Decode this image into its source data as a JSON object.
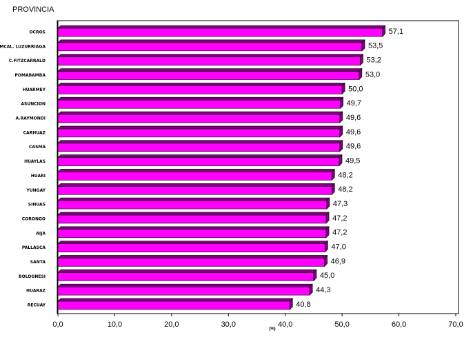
{
  "chart_data": {
    "type": "bar3d-horizontal",
    "title": "PROVINCIA",
    "x_label": "(%)",
    "categories": [
      "OCROS",
      "MCAL. LUZURRIAGA",
      "C.FITZCARRALD",
      "POMABAMBA",
      "HUARMEY",
      "ASUNCION",
      "A.RAYMONDI",
      "CARHUAZ",
      "CASMA",
      "HUAYLAS",
      "HUARI",
      "YUNGAY",
      "SIHUAS",
      "CORONGO",
      "AIJA",
      "PALLASCA",
      "SANTA",
      "BOLOGNESI",
      "HUARAZ",
      "RECUAY"
    ],
    "values": [
      57.1,
      53.5,
      53.2,
      53.0,
      50.0,
      49.7,
      49.6,
      49.6,
      49.6,
      49.5,
      48.2,
      48.2,
      47.3,
      47.2,
      47.2,
      47.0,
      46.9,
      45.0,
      44.3,
      40.8
    ],
    "value_labels": [
      "57,1",
      "53,5",
      "53,2",
      "53,0",
      "50,0",
      "49,7",
      "49,6",
      "49,6",
      "49,6",
      "49,5",
      "48,2",
      "48,2",
      "47,3",
      "47,2",
      "47,2",
      "47,0",
      "46,9",
      "45,0",
      "44,3",
      "40,8"
    ],
    "color": "#ff00ff",
    "side_color": "#800080",
    "xlim": [
      0,
      70
    ],
    "xticks": [
      {
        "value": 0,
        "label": "0,0"
      },
      {
        "value": 10,
        "label": "10,0"
      },
      {
        "value": 20,
        "label": "20,0"
      },
      {
        "value": 30,
        "label": "30,0"
      },
      {
        "value": 40,
        "label": "40,0"
      },
      {
        "value": 50,
        "label": "50,0"
      },
      {
        "value": 60,
        "label": "60,0"
      },
      {
        "value": 70,
        "label": "70,0"
      }
    ]
  }
}
